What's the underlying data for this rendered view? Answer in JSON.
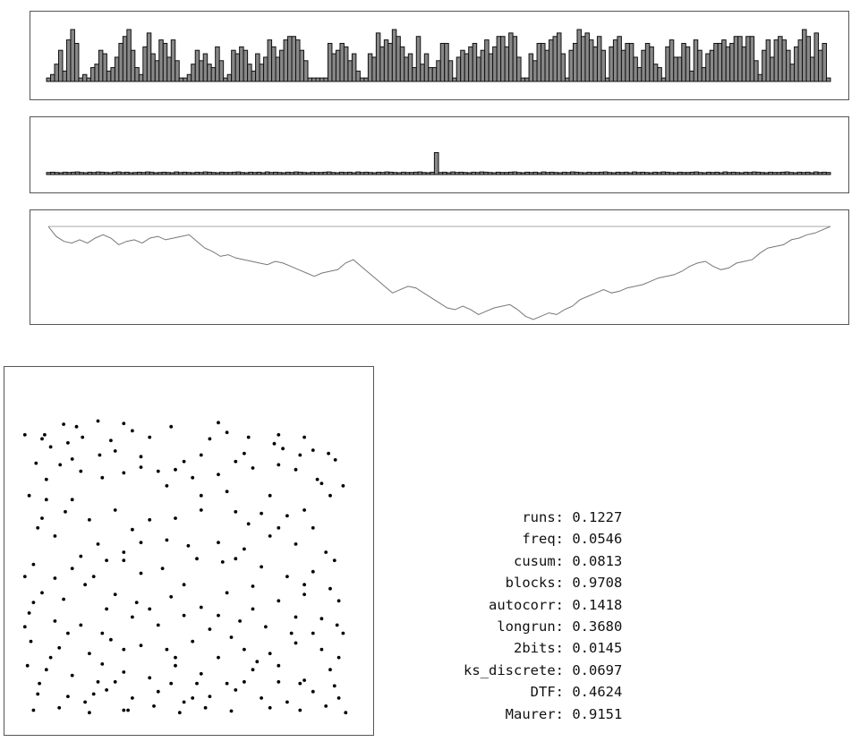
{
  "chart_data": [
    {
      "type": "bar",
      "values": [
        1,
        2,
        5,
        9,
        3,
        12,
        15,
        11,
        1,
        2,
        1,
        4,
        5,
        9,
        8,
        3,
        4,
        7,
        11,
        13,
        15,
        9,
        4,
        2,
        10,
        14,
        8,
        6,
        12,
        11,
        7,
        12,
        6,
        1,
        1,
        2,
        5,
        9,
        6,
        8,
        5,
        4,
        10,
        6,
        1,
        2,
        9,
        8,
        10,
        9,
        5,
        3,
        8,
        5,
        7,
        12,
        10,
        7,
        9,
        12,
        13,
        13,
        12,
        9,
        6,
        1,
        1,
        1,
        1,
        1,
        11,
        8,
        9,
        11,
        10,
        6,
        8,
        3,
        1,
        1,
        8,
        7,
        14,
        10,
        12,
        11,
        15,
        13,
        10,
        7,
        8,
        4,
        13,
        5,
        8,
        4,
        4,
        6,
        11,
        11,
        6,
        1,
        7,
        9,
        8,
        10,
        11,
        7,
        9,
        12,
        8,
        10,
        13,
        13,
        10,
        14,
        13,
        7,
        1,
        1,
        8,
        6,
        11,
        11,
        9,
        12,
        13,
        14,
        8,
        1,
        9,
        11,
        15,
        13,
        14,
        12,
        10,
        13,
        9,
        1,
        10,
        12,
        13,
        9,
        11,
        11,
        7,
        4,
        9,
        11,
        10,
        5,
        4,
        1,
        10,
        12,
        7,
        7,
        11,
        10,
        3,
        12,
        9,
        4,
        8,
        9,
        11,
        11,
        12,
        10,
        11,
        13,
        13,
        10,
        13,
        13,
        6,
        2,
        9,
        12,
        7,
        12,
        13,
        12,
        9,
        5,
        10,
        12,
        15,
        13,
        7,
        14,
        9,
        11,
        1
      ],
      "ylim": [
        0,
        15
      ]
    },
    {
      "type": "bar",
      "values": [
        0.8,
        0.9,
        0.8,
        0.7,
        0.9,
        0.8,
        0.9,
        1.0,
        0.8,
        0.7,
        0.9,
        0.8,
        1.0,
        0.9,
        0.8,
        0.7,
        0.9,
        1.0,
        0.8,
        0.9,
        0.7,
        0.8,
        0.9,
        0.8,
        1.0,
        0.9,
        0.7,
        0.8,
        0.9,
        0.8,
        0.7,
        1.0,
        0.8,
        0.9,
        0.8,
        0.7,
        0.9,
        0.8,
        1.0,
        0.9,
        0.8,
        0.7,
        0.9,
        0.8,
        0.8,
        0.9,
        1.0,
        0.8,
        0.7,
        0.9,
        0.8,
        0.9,
        0.7,
        1.0,
        0.8,
        0.9,
        0.8,
        0.7,
        0.9,
        0.8,
        1.0,
        0.9,
        0.8,
        0.7,
        0.9,
        0.8,
        0.8,
        0.9,
        1.0,
        0.8,
        0.7,
        0.9,
        0.8,
        0.9,
        0.7,
        1.0,
        0.8,
        0.9,
        0.8,
        0.7,
        0.9,
        0.8,
        1.0,
        0.9,
        0.8,
        0.7,
        0.9,
        0.8,
        0.8,
        0.9,
        1.0,
        0.8,
        0.7,
        0.9,
        8.5,
        0.8,
        0.9,
        0.7,
        1.0,
        0.8,
        0.9,
        0.8,
        0.7,
        0.9,
        0.8,
        1.0,
        0.9,
        0.8,
        0.7,
        0.9,
        0.8,
        0.8,
        0.9,
        1.0,
        0.8,
        0.7,
        0.9,
        0.8,
        0.9,
        0.7,
        1.0,
        0.8,
        0.9,
        0.8,
        0.7,
        0.9,
        0.8,
        1.0,
        0.9,
        0.8,
        0.7,
        0.9,
        0.8,
        0.8,
        0.9,
        1.0,
        0.8,
        0.7,
        0.9,
        0.8,
        0.9,
        0.7,
        1.0,
        0.8,
        0.9,
        0.8,
        0.7,
        0.9,
        0.8,
        1.0,
        0.9,
        0.8,
        0.7,
        0.9,
        0.8,
        0.8,
        0.9,
        1.0,
        0.8,
        0.7,
        0.9,
        0.8,
        0.9,
        0.7,
        1.0,
        0.8,
        0.9,
        0.8,
        0.7,
        0.9,
        0.8,
        1.0,
        0.9,
        0.8,
        0.7,
        0.9,
        0.8,
        0.8,
        0.9,
        1.0,
        0.8,
        0.7,
        0.9,
        0.8,
        0.9,
        0.7,
        1.0,
        0.8,
        0.9,
        0.8
      ],
      "ylim": [
        0,
        9
      ]
    },
    {
      "type": "line",
      "x": [
        0,
        2,
        4,
        6,
        8,
        10,
        12,
        14,
        16,
        18,
        20,
        22,
        24,
        26,
        28,
        30,
        32,
        34,
        36,
        38,
        40,
        42,
        44,
        46,
        48,
        50,
        52,
        54,
        56,
        58,
        60,
        62,
        64,
        66,
        68,
        70,
        72,
        74,
        76,
        78,
        80,
        82,
        84,
        86,
        88,
        90,
        92,
        94,
        96,
        98,
        100,
        102,
        104,
        106,
        108,
        110,
        112,
        114,
        116,
        118,
        120,
        122,
        124,
        126,
        128,
        130,
        132,
        134,
        136,
        138,
        140,
        142,
        144,
        146,
        148,
        150,
        152,
        154,
        156,
        158,
        160,
        162,
        164,
        166,
        168,
        170,
        172,
        174,
        176,
        178,
        180,
        182,
        184,
        186,
        188,
        190,
        192,
        194,
        196,
        198,
        200
      ],
      "y": [
        0,
        -6,
        -9,
        -10,
        -8,
        -10,
        -7,
        -5,
        -7,
        -11,
        -9,
        -8,
        -10,
        -7,
        -6,
        -8,
        -7,
        -6,
        -5,
        -9,
        -13,
        -15,
        -18,
        -17,
        -19,
        -20,
        -21,
        -22,
        -23,
        -21,
        -22,
        -24,
        -26,
        -28,
        -30,
        -28,
        -27,
        -26,
        -22,
        -20,
        -24,
        -28,
        -32,
        -36,
        -40,
        -38,
        -36,
        -37,
        -40,
        -43,
        -46,
        -49,
        -50,
        -48,
        -50,
        -53,
        -51,
        -49,
        -48,
        -47,
        -50,
        -54,
        -56,
        -54,
        -52,
        -53,
        -50,
        -48,
        -44,
        -42,
        -40,
        -38,
        -40,
        -39,
        -37,
        -36,
        -35,
        -33,
        -31,
        -30,
        -29,
        -27,
        -24,
        -22,
        -21,
        -24,
        -26,
        -25,
        -22,
        -21,
        -20,
        -16,
        -13,
        -12,
        -11,
        -8,
        -7,
        -5,
        -4,
        -2,
        0
      ],
      "ylim": [
        -56,
        0
      ],
      "baseline": 0
    },
    {
      "type": "scatter",
      "points": [
        [
          5,
          55
        ],
        [
          28,
          55
        ],
        [
          72,
          58
        ],
        [
          240,
          52
        ],
        [
          300,
          55
        ],
        [
          50,
          42
        ],
        [
          90,
          38
        ],
        [
          120,
          41
        ],
        [
          230,
          40
        ],
        [
          130,
          50
        ],
        [
          35,
          70
        ],
        [
          55,
          65
        ],
        [
          92,
          80
        ],
        [
          110,
          75
        ],
        [
          140,
          82
        ],
        [
          190,
          88
        ],
        [
          210,
          80
        ],
        [
          260,
          78
        ],
        [
          305,
          72
        ],
        [
          325,
          80
        ],
        [
          340,
          74
        ],
        [
          18,
          90
        ],
        [
          46,
          92
        ],
        [
          70,
          100
        ],
        [
          95,
          108
        ],
        [
          120,
          102
        ],
        [
          160,
          100
        ],
        [
          180,
          98
        ],
        [
          200,
          108
        ],
        [
          230,
          104
        ],
        [
          270,
          96
        ],
        [
          300,
          92
        ],
        [
          345,
          110
        ],
        [
          366,
          86
        ],
        [
          350,
          115
        ],
        [
          10,
          130
        ],
        [
          30,
          135
        ],
        [
          52,
          150
        ],
        [
          80,
          160
        ],
        [
          110,
          148
        ],
        [
          150,
          160
        ],
        [
          180,
          158
        ],
        [
          210,
          148
        ],
        [
          250,
          150
        ],
        [
          280,
          152
        ],
        [
          310,
          155
        ],
        [
          330,
          148
        ],
        [
          360,
          130
        ],
        [
          375,
          118
        ],
        [
          20,
          170
        ],
        [
          40,
          180
        ],
        [
          90,
          190
        ],
        [
          120,
          200
        ],
        [
          140,
          188
        ],
        [
          170,
          185
        ],
        [
          195,
          192
        ],
        [
          230,
          188
        ],
        [
          260,
          196
        ],
        [
          290,
          180
        ],
        [
          320,
          190
        ],
        [
          355,
          200
        ],
        [
          15,
          215
        ],
        [
          60,
          220
        ],
        [
          85,
          230
        ],
        [
          100,
          210
        ],
        [
          140,
          226
        ],
        [
          165,
          220
        ],
        [
          205,
          208
        ],
        [
          235,
          212
        ],
        [
          280,
          218
        ],
        [
          310,
          230
        ],
        [
          340,
          224
        ],
        [
          365,
          210
        ],
        [
          25,
          250
        ],
        [
          50,
          258
        ],
        [
          75,
          240
        ],
        [
          110,
          252
        ],
        [
          135,
          262
        ],
        [
          175,
          255
        ],
        [
          210,
          268
        ],
        [
          240,
          250
        ],
        [
          270,
          242
        ],
        [
          300,
          260
        ],
        [
          330,
          252
        ],
        [
          360,
          245
        ],
        [
          10,
          275
        ],
        [
          40,
          285
        ],
        [
          70,
          290
        ],
        [
          95,
          300
        ],
        [
          130,
          280
        ],
        [
          160,
          290
        ],
        [
          190,
          278
        ],
        [
          220,
          295
        ],
        [
          255,
          285
        ],
        [
          285,
          292
        ],
        [
          315,
          300
        ],
        [
          350,
          282
        ],
        [
          370,
          260
        ],
        [
          12,
          310
        ],
        [
          45,
          318
        ],
        [
          80,
          325
        ],
        [
          105,
          308
        ],
        [
          140,
          315
        ],
        [
          170,
          320
        ],
        [
          200,
          310
        ],
        [
          230,
          330
        ],
        [
          260,
          320
        ],
        [
          290,
          325
        ],
        [
          320,
          312
        ],
        [
          350,
          320
        ],
        [
          375,
          300
        ],
        [
          8,
          340
        ],
        [
          30,
          345
        ],
        [
          60,
          352
        ],
        [
          90,
          360
        ],
        [
          120,
          348
        ],
        [
          150,
          355
        ],
        [
          180,
          340
        ],
        [
          210,
          350
        ],
        [
          240,
          362
        ],
        [
          270,
          345
        ],
        [
          300,
          340
        ],
        [
          330,
          358
        ],
        [
          360,
          345
        ],
        [
          20,
          375
        ],
        [
          55,
          378
        ],
        [
          75,
          385
        ],
        [
          100,
          370
        ],
        [
          130,
          380
        ],
        [
          160,
          372
        ],
        [
          190,
          385
        ],
        [
          220,
          378
        ],
        [
          250,
          370
        ],
        [
          280,
          380
        ],
        [
          310,
          385
        ],
        [
          340,
          372
        ],
        [
          370,
          380
        ],
        [
          15,
          395
        ],
        [
          45,
          392
        ],
        [
          80,
          398
        ],
        [
          120,
          395
        ],
        [
          155,
          390
        ],
        [
          185,
          398
        ],
        [
          215,
          392
        ],
        [
          245,
          396
        ],
        [
          290,
          392
        ],
        [
          325,
          395
        ],
        [
          355,
          390
        ],
        [
          378,
          398
        ],
        [
          25,
          60
        ],
        [
          65,
          45
        ],
        [
          105,
          62
        ],
        [
          150,
          58
        ],
        [
          175,
          45
        ],
        [
          220,
          60
        ],
        [
          265,
          58
        ],
        [
          295,
          66
        ],
        [
          330,
          58
        ],
        [
          358,
          78
        ],
        [
          60,
          85
        ],
        [
          140,
          95
        ],
        [
          250,
          88
        ],
        [
          320,
          98
        ],
        [
          30,
          110
        ],
        [
          170,
          118
        ],
        [
          240,
          125
        ],
        [
          290,
          130
        ],
        [
          60,
          135
        ],
        [
          210,
          130
        ],
        [
          25,
          158
        ],
        [
          130,
          172
        ],
        [
          265,
          165
        ],
        [
          340,
          170
        ],
        [
          70,
          205
        ],
        [
          120,
          210
        ],
        [
          250,
          208
        ],
        [
          300,
          170
        ],
        [
          5,
          230
        ],
        [
          40,
          232
        ],
        [
          190,
          240
        ],
        [
          330,
          240
        ],
        [
          15,
          262
        ],
        [
          100,
          270
        ],
        [
          150,
          270
        ],
        [
          230,
          278
        ],
        [
          270,
          270
        ],
        [
          320,
          280
        ],
        [
          55,
          300
        ],
        [
          120,
          320
        ],
        [
          245,
          305
        ],
        [
          340,
          300
        ],
        [
          35,
          330
        ],
        [
          95,
          338
        ],
        [
          180,
          330
        ],
        [
          275,
          335
        ],
        [
          370,
          330
        ],
        [
          22,
          362
        ],
        [
          110,
          360
        ],
        [
          205,
          362
        ],
        [
          300,
          360
        ],
        [
          365,
          365
        ],
        [
          85,
          375
        ],
        [
          175,
          362
        ],
        [
          260,
          360
        ],
        [
          325,
          362
        ],
        [
          5,
          292
        ],
        [
          368,
          290
        ],
        [
          125,
          395
        ],
        [
          200,
          380
        ]
      ],
      "xlim": [
        0,
        385
      ],
      "ylim": [
        0,
        400
      ]
    }
  ],
  "stats": [
    {
      "name": "runs:",
      "value": "0.1227"
    },
    {
      "name": "freq:",
      "value": "0.0546"
    },
    {
      "name": "cusum:",
      "value": "0.0813"
    },
    {
      "name": "blocks:",
      "value": "0.9708"
    },
    {
      "name": "autocorr:",
      "value": "0.1418"
    },
    {
      "name": "longrun:",
      "value": "0.3680"
    },
    {
      "name": "2bits:",
      "value": "0.0145"
    },
    {
      "name": "ks_discrete:",
      "value": "0.0697"
    },
    {
      "name": "DTF:",
      "value": "0.4624"
    },
    {
      "name": "Maurer:",
      "value": "0.9151"
    }
  ]
}
